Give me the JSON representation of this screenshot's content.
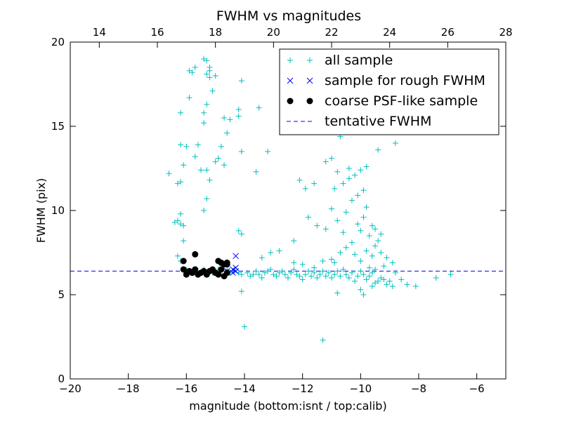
{
  "chart_data": {
    "type": "scatter",
    "title": "FWHM vs magnitudes",
    "xlabel": "magnitude (bottom:isnt / top:calib)",
    "ylabel": "FWHM (pix)",
    "xlim": [
      -20,
      -5
    ],
    "ylim": [
      0,
      20
    ],
    "top_xlim": [
      13.0,
      28.0
    ],
    "xticks": [
      "−20",
      "−18",
      "−16",
      "−14",
      "−12",
      "−10",
      "−8",
      "−6"
    ],
    "xtick_values": [
      -20,
      -18,
      -16,
      -14,
      -12,
      -10,
      -8,
      -6
    ],
    "yticks": [
      "0",
      "5",
      "10",
      "15",
      "20"
    ],
    "ytick_values": [
      0,
      5,
      10,
      15,
      20
    ],
    "top_xticks": [
      "14",
      "16",
      "18",
      "20",
      "22",
      "24",
      "26",
      "28"
    ],
    "top_xtick_values": [
      14,
      16,
      18,
      20,
      22,
      24,
      26,
      28
    ],
    "grid": false,
    "legend_position": "top-right",
    "colors": {
      "all": "#00bfbf",
      "rough": "#0000ff",
      "coarse": "#000000",
      "tentative": "#0000ff"
    },
    "series": [
      {
        "name": "all sample",
        "marker": "plus",
        "points": [
          [
            -16.3,
            11.6
          ],
          [
            -16.2,
            11.7
          ],
          [
            -16.1,
            12.7
          ],
          [
            -16.0,
            13.8
          ],
          [
            -16.2,
            13.9
          ],
          [
            -16.6,
            12.2
          ],
          [
            -16.2,
            15.8
          ],
          [
            -15.9,
            16.7
          ],
          [
            -15.8,
            18.2
          ],
          [
            -15.9,
            18.3
          ],
          [
            -15.7,
            18.5
          ],
          [
            -15.4,
            19.0
          ],
          [
            -15.3,
            18.9
          ],
          [
            -15.2,
            18.5
          ],
          [
            -15.2,
            18.3
          ],
          [
            -15.3,
            18.1
          ],
          [
            -15.2,
            17.9
          ],
          [
            -15.3,
            16.3
          ],
          [
            -15.1,
            17.1
          ],
          [
            -15.4,
            15.8
          ],
          [
            -15.4,
            15.2
          ],
          [
            -15.6,
            13.9
          ],
          [
            -15.7,
            13.2
          ],
          [
            -15.5,
            12.4
          ],
          [
            -15.3,
            12.4
          ],
          [
            -15.2,
            11.8
          ],
          [
            -15.3,
            10.7
          ],
          [
            -15.4,
            10.0
          ],
          [
            -15.0,
            12.9
          ],
          [
            -14.9,
            13.1
          ],
          [
            -14.8,
            13.8
          ],
          [
            -14.7,
            12.7
          ],
          [
            -14.6,
            14.6
          ],
          [
            -14.7,
            15.5
          ],
          [
            -14.5,
            15.4
          ],
          [
            -15.0,
            18.0
          ],
          [
            -16.3,
            9.4
          ],
          [
            -16.2,
            9.2
          ],
          [
            -16.2,
            9.8
          ],
          [
            -16.1,
            9.1
          ],
          [
            -16.4,
            9.3
          ],
          [
            -16.1,
            8.2
          ],
          [
            -16.3,
            7.3
          ],
          [
            -16.2,
            7.0
          ],
          [
            -16.0,
            6.5
          ],
          [
            -15.8,
            6.4
          ],
          [
            -15.6,
            6.3
          ],
          [
            -15.4,
            6.5
          ],
          [
            -15.1,
            6.3
          ],
          [
            -14.9,
            6.5
          ],
          [
            -14.8,
            6.4
          ],
          [
            -14.6,
            6.5
          ],
          [
            -14.5,
            6.3
          ],
          [
            -14.4,
            6.4
          ],
          [
            -14.2,
            6.3
          ],
          [
            -14.1,
            6.2
          ],
          [
            -13.9,
            6.3
          ],
          [
            -13.8,
            6.1
          ],
          [
            -13.7,
            6.2
          ],
          [
            -13.6,
            6.4
          ],
          [
            -13.5,
            6.2
          ],
          [
            -13.4,
            6.0
          ],
          [
            -13.3,
            6.3
          ],
          [
            -13.2,
            6.4
          ],
          [
            -13.1,
            6.5
          ],
          [
            -13.0,
            6.2
          ],
          [
            -12.9,
            6.1
          ],
          [
            -12.8,
            6.3
          ],
          [
            -12.7,
            6.4
          ],
          [
            -12.6,
            6.2
          ],
          [
            -12.5,
            6.0
          ],
          [
            -12.4,
            6.3
          ],
          [
            -12.3,
            6.5
          ],
          [
            -12.2,
            6.2
          ],
          [
            -12.1,
            6.1
          ],
          [
            -12.0,
            5.9
          ],
          [
            -11.9,
            6.2
          ],
          [
            -11.8,
            6.4
          ],
          [
            -11.7,
            6.1
          ],
          [
            -11.6,
            6.3
          ],
          [
            -11.5,
            6.0
          ],
          [
            -11.4,
            6.2
          ],
          [
            -11.3,
            6.4
          ],
          [
            -11.2,
            6.1
          ],
          [
            -11.1,
            6.3
          ],
          [
            -11.0,
            6.0
          ],
          [
            -10.9,
            6.2
          ],
          [
            -10.8,
            6.4
          ],
          [
            -10.7,
            6.1
          ],
          [
            -10.6,
            6.5
          ],
          [
            -10.5,
            6.2
          ],
          [
            -10.4,
            6.0
          ],
          [
            -10.3,
            6.3
          ],
          [
            -10.2,
            5.8
          ],
          [
            -10.1,
            6.1
          ],
          [
            -10.0,
            6.4
          ],
          [
            -9.9,
            6.2
          ],
          [
            -9.8,
            5.9
          ],
          [
            -9.7,
            6.1
          ],
          [
            -9.6,
            6.3
          ],
          [
            -9.5,
            5.7
          ],
          [
            -9.4,
            5.8
          ],
          [
            -9.3,
            6.0
          ],
          [
            -9.2,
            5.9
          ],
          [
            -9.1,
            5.6
          ],
          [
            -9.0,
            5.8
          ],
          [
            -8.9,
            5.5
          ],
          [
            -8.8,
            6.3
          ],
          [
            -8.6,
            5.9
          ],
          [
            -8.4,
            5.6
          ],
          [
            -8.1,
            5.5
          ],
          [
            -7.4,
            6.0
          ],
          [
            -6.9,
            6.2
          ],
          [
            -13.4,
            7.2
          ],
          [
            -13.1,
            7.5
          ],
          [
            -12.8,
            7.6
          ],
          [
            -12.3,
            6.9
          ],
          [
            -12.0,
            6.8
          ],
          [
            -11.6,
            6.6
          ],
          [
            -11.3,
            7.0
          ],
          [
            -11.0,
            7.1
          ],
          [
            -10.9,
            6.9
          ],
          [
            -10.7,
            7.5
          ],
          [
            -10.5,
            7.8
          ],
          [
            -10.3,
            8.1
          ],
          [
            -10.2,
            7.4
          ],
          [
            -10.0,
            7.0
          ],
          [
            -9.8,
            7.6
          ],
          [
            -9.6,
            7.3
          ],
          [
            -9.5,
            7.9
          ],
          [
            -9.3,
            7.5
          ],
          [
            -9.1,
            7.2
          ],
          [
            -14.2,
            8.8
          ],
          [
            -14.1,
            8.6
          ],
          [
            -14.1,
            5.2
          ],
          [
            -14.0,
            3.1
          ],
          [
            -11.3,
            2.3
          ],
          [
            -12.3,
            8.2
          ],
          [
            -11.8,
            9.6
          ],
          [
            -11.5,
            9.1
          ],
          [
            -11.2,
            8.9
          ],
          [
            -11.0,
            10.1
          ],
          [
            -10.8,
            9.4
          ],
          [
            -10.6,
            8.7
          ],
          [
            -10.5,
            9.9
          ],
          [
            -10.3,
            10.6
          ],
          [
            -10.1,
            9.2
          ],
          [
            -10.0,
            8.8
          ],
          [
            -9.9,
            9.6
          ],
          [
            -9.8,
            10.2
          ],
          [
            -9.7,
            8.5
          ],
          [
            -9.6,
            9.1
          ],
          [
            -9.5,
            8.9
          ],
          [
            -9.4,
            8.2
          ],
          [
            -9.3,
            8.6
          ],
          [
            -10.9,
            11.3
          ],
          [
            -10.6,
            11.6
          ],
          [
            -10.4,
            11.9
          ],
          [
            -10.2,
            12.1
          ],
          [
            -10.0,
            12.4
          ],
          [
            -9.8,
            12.6
          ],
          [
            -9.9,
            11.2
          ],
          [
            -10.1,
            10.9
          ],
          [
            -10.8,
            12.3
          ],
          [
            -11.2,
            12.9
          ],
          [
            -10.4,
            12.5
          ],
          [
            -12.1,
            11.8
          ],
          [
            -11.9,
            11.3
          ],
          [
            -11.6,
            11.6
          ],
          [
            -11.0,
            13.1
          ],
          [
            -10.7,
            14.4
          ],
          [
            -9.4,
            13.6
          ],
          [
            -8.8,
            14.0
          ],
          [
            -11.4,
            15.1
          ],
          [
            -14.1,
            13.5
          ],
          [
            -14.2,
            15.6
          ],
          [
            -14.2,
            16.0
          ],
          [
            -14.1,
            17.7
          ],
          [
            -13.6,
            12.3
          ],
          [
            -13.2,
            13.5
          ],
          [
            -13.5,
            16.1
          ],
          [
            -9.7,
            6.6
          ],
          [
            -9.5,
            6.5
          ],
          [
            -9.2,
            6.7
          ],
          [
            -8.9,
            6.9
          ],
          [
            -10.0,
            5.3
          ],
          [
            -9.6,
            5.5
          ],
          [
            -10.8,
            5.1
          ],
          [
            -9.9,
            5.0
          ]
        ]
      },
      {
        "name": "sample for rough FWHM",
        "marker": "x",
        "points": [
          [
            -14.3,
            7.3
          ],
          [
            -14.4,
            6.5
          ],
          [
            -14.3,
            6.4
          ],
          [
            -14.4,
            6.3
          ],
          [
            -14.6,
            6.4
          ],
          [
            -14.3,
            6.6
          ]
        ]
      },
      {
        "name": "coarse PSF-like sample",
        "marker": "circle",
        "points": [
          [
            -16.1,
            7.0
          ],
          [
            -15.7,
            7.4
          ],
          [
            -16.1,
            6.5
          ],
          [
            -16.0,
            6.2
          ],
          [
            -15.9,
            6.4
          ],
          [
            -15.8,
            6.3
          ],
          [
            -15.7,
            6.5
          ],
          [
            -15.6,
            6.2
          ],
          [
            -15.5,
            6.3
          ],
          [
            -15.4,
            6.4
          ],
          [
            -15.3,
            6.2
          ],
          [
            -15.2,
            6.4
          ],
          [
            -15.1,
            6.5
          ],
          [
            -15.0,
            6.3
          ],
          [
            -14.9,
            6.2
          ],
          [
            -14.8,
            6.9
          ],
          [
            -14.7,
            6.8
          ],
          [
            -14.6,
            6.8
          ],
          [
            -14.8,
            6.5
          ],
          [
            -14.7,
            6.1
          ],
          [
            -14.6,
            6.3
          ],
          [
            -14.9,
            7.0
          ],
          [
            -14.6,
            6.9
          ]
        ]
      },
      {
        "name": "tentative FWHM",
        "marker": "dashed-line",
        "y": 6.4
      }
    ]
  }
}
